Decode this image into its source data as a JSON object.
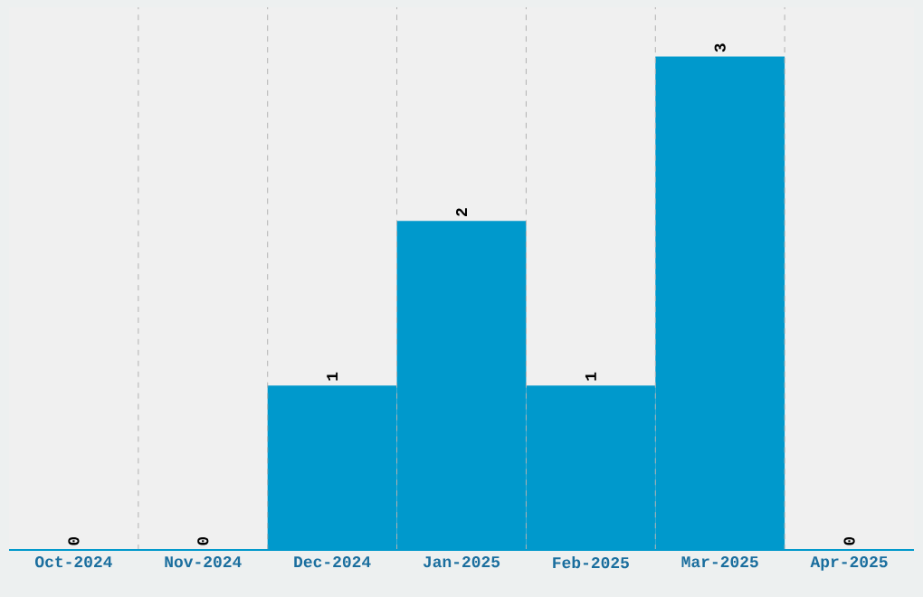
{
  "chart_data": {
    "type": "bar",
    "categories": [
      "Oct-2024",
      "Nov-2024",
      "Dec-2024",
      "Jan-2025",
      "Feb-2025",
      "Mar-2025",
      "Apr-2025"
    ],
    "values": [
      0,
      0,
      1,
      2,
      1,
      3,
      0
    ],
    "color": "#0099cc",
    "ylim": [
      0,
      3.3
    ],
    "tick_labels": "x",
    "grid": "x",
    "data_labels": true
  }
}
